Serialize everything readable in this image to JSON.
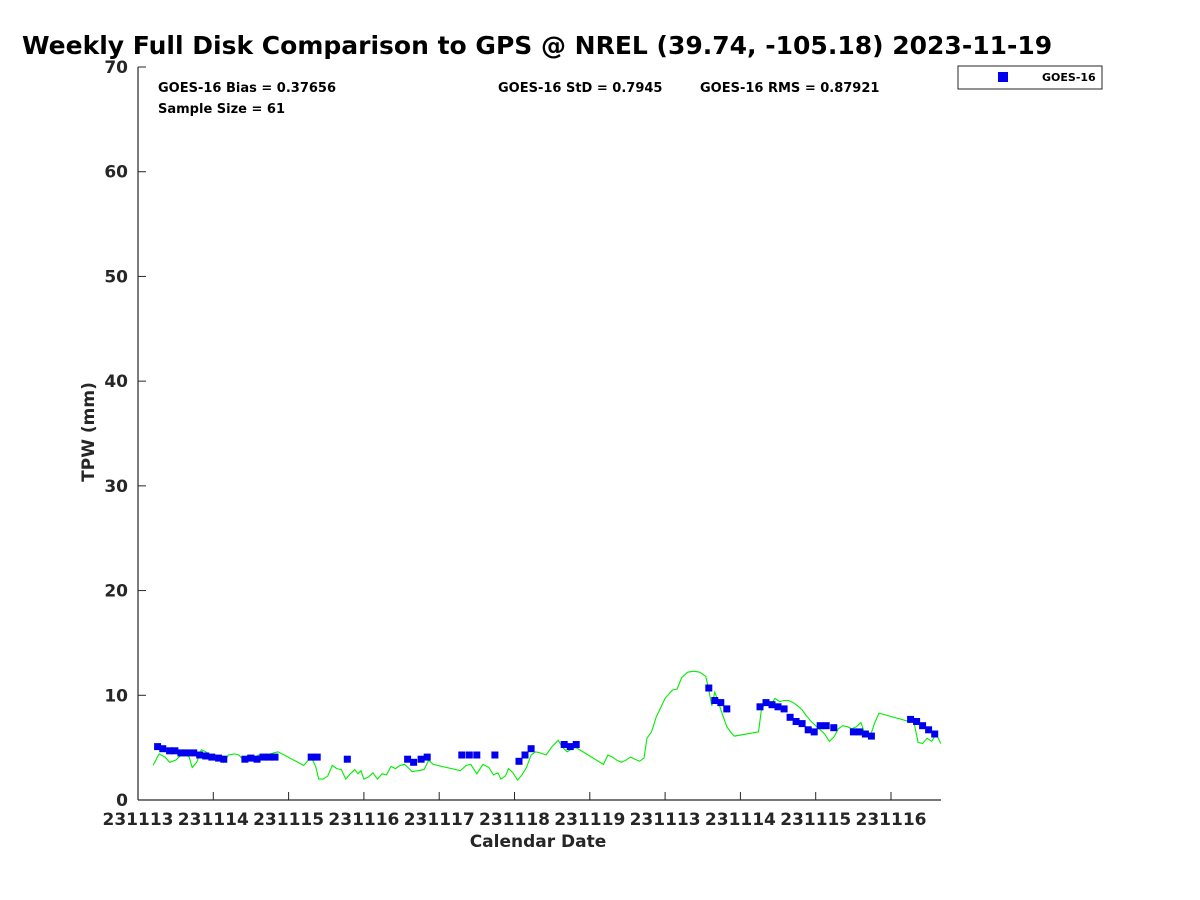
{
  "chart_data": {
    "type": "scatter",
    "title": "Weekly Full Disk Comparison to GPS @ NREL (39.74, -105.18) 2023-11-19",
    "xlabel": "Calendar Date",
    "ylabel": "TPW (mm)",
    "ylim": [
      0,
      70
    ],
    "yticks": [
      0,
      10,
      20,
      30,
      40,
      50,
      60,
      70
    ],
    "x_range": [
      0,
      10.65
    ],
    "xtick_positions": [
      0,
      1,
      2,
      3,
      4,
      5,
      6,
      7,
      8,
      9,
      10
    ],
    "xtick_labels": [
      "231113",
      "231114",
      "231115",
      "231116",
      "231117",
      "231118",
      "231119",
      "231113",
      "231114",
      "231115",
      "231116"
    ],
    "grid": false,
    "legend": {
      "placement": "top-right",
      "entries": [
        "GOES-16"
      ]
    },
    "stats": {
      "bias": "GOES-16 Bias = 0.37656",
      "std": "GOES-16 StD = 0.7945",
      "rms": "GOES-16 RMS = 0.87921",
      "sample": "Sample Size = 61"
    },
    "series": [
      {
        "name": "GOES-16",
        "marker": "square",
        "color": "#0000ee",
        "points": [
          [
            0.26,
            5.1
          ],
          [
            0.33,
            4.9
          ],
          [
            0.42,
            4.7
          ],
          [
            0.49,
            4.7
          ],
          [
            0.57,
            4.5
          ],
          [
            0.65,
            4.5
          ],
          [
            0.74,
            4.5
          ],
          [
            0.82,
            4.3
          ],
          [
            0.9,
            4.2
          ],
          [
            0.98,
            4.1
          ],
          [
            1.07,
            4.0
          ],
          [
            1.14,
            3.9
          ],
          [
            1.42,
            3.9
          ],
          [
            1.5,
            4.0
          ],
          [
            1.58,
            3.9
          ],
          [
            1.66,
            4.1
          ],
          [
            1.74,
            4.1
          ],
          [
            1.82,
            4.1
          ],
          [
            2.3,
            4.1
          ],
          [
            2.38,
            4.1
          ],
          [
            2.78,
            3.9
          ],
          [
            3.58,
            3.9
          ],
          [
            3.66,
            3.6
          ],
          [
            3.76,
            3.9
          ],
          [
            3.84,
            4.1
          ],
          [
            4.3,
            4.3
          ],
          [
            4.4,
            4.3
          ],
          [
            4.5,
            4.3
          ],
          [
            4.74,
            4.3
          ],
          [
            5.06,
            3.7
          ],
          [
            5.14,
            4.3
          ],
          [
            5.22,
            4.9
          ],
          [
            5.66,
            5.3
          ],
          [
            5.74,
            5.1
          ],
          [
            5.82,
            5.3
          ],
          [
            7.58,
            10.7
          ],
          [
            7.66,
            9.5
          ],
          [
            7.74,
            9.3
          ],
          [
            7.82,
            8.7
          ],
          [
            8.26,
            8.9
          ],
          [
            8.34,
            9.3
          ],
          [
            8.42,
            9.1
          ],
          [
            8.5,
            8.9
          ],
          [
            8.58,
            8.7
          ],
          [
            8.66,
            7.9
          ],
          [
            8.74,
            7.5
          ],
          [
            8.82,
            7.3
          ],
          [
            8.9,
            6.7
          ],
          [
            8.98,
            6.5
          ],
          [
            9.06,
            7.1
          ],
          [
            9.14,
            7.1
          ],
          [
            9.24,
            6.9
          ],
          [
            9.5,
            6.5
          ],
          [
            9.58,
            6.5
          ],
          [
            9.66,
            6.3
          ],
          [
            9.74,
            6.1
          ],
          [
            10.26,
            7.7
          ],
          [
            10.34,
            7.5
          ],
          [
            10.42,
            7.1
          ],
          [
            10.5,
            6.7
          ],
          [
            10.58,
            6.3
          ]
        ]
      },
      {
        "name": "GPS",
        "marker": "line",
        "color": "#00ee00",
        "points": [
          [
            0.2,
            3.3
          ],
          [
            0.28,
            4.4
          ],
          [
            0.36,
            4.1
          ],
          [
            0.42,
            3.6
          ],
          [
            0.5,
            3.8
          ],
          [
            0.56,
            4.2
          ],
          [
            0.62,
            4.4
          ],
          [
            0.68,
            4.1
          ],
          [
            0.72,
            3.1
          ],
          [
            0.78,
            3.6
          ],
          [
            0.84,
            4.8
          ],
          [
            0.9,
            4.6
          ],
          [
            0.96,
            4.3
          ],
          [
            1.04,
            4.0
          ],
          [
            1.1,
            4.2
          ],
          [
            1.14,
            3.6
          ],
          [
            1.2,
            4.3
          ],
          [
            1.28,
            4.4
          ],
          [
            1.34,
            4.3
          ],
          [
            1.4,
            3.8
          ],
          [
            1.46,
            4.3
          ],
          [
            1.52,
            3.9
          ],
          [
            1.6,
            4.3
          ],
          [
            1.66,
            4.1
          ],
          [
            1.72,
            4.3
          ],
          [
            1.8,
            4.5
          ],
          [
            1.86,
            4.6
          ],
          [
            2.2,
            3.3
          ],
          [
            2.3,
            4.1
          ],
          [
            2.36,
            3.2
          ],
          [
            2.4,
            2.0
          ],
          [
            2.46,
            2.0
          ],
          [
            2.52,
            2.3
          ],
          [
            2.58,
            3.3
          ],
          [
            2.64,
            3.0
          ],
          [
            2.7,
            2.9
          ],
          [
            2.76,
            2.0
          ],
          [
            2.82,
            2.5
          ],
          [
            2.88,
            2.9
          ],
          [
            2.92,
            2.5
          ],
          [
            2.96,
            2.8
          ],
          [
            3.0,
            2.0
          ],
          [
            3.06,
            2.2
          ],
          [
            3.12,
            2.6
          ],
          [
            3.18,
            2.0
          ],
          [
            3.24,
            2.5
          ],
          [
            3.3,
            2.4
          ],
          [
            3.36,
            3.2
          ],
          [
            3.42,
            3.0
          ],
          [
            3.48,
            3.3
          ],
          [
            3.54,
            3.4
          ],
          [
            3.6,
            3.0
          ],
          [
            3.64,
            2.7
          ],
          [
            3.72,
            2.8
          ],
          [
            3.8,
            2.9
          ],
          [
            3.86,
            3.8
          ],
          [
            3.92,
            3.4
          ],
          [
            4.28,
            2.8
          ],
          [
            4.36,
            3.3
          ],
          [
            4.42,
            3.4
          ],
          [
            4.5,
            2.5
          ],
          [
            4.58,
            3.4
          ],
          [
            4.66,
            3.1
          ],
          [
            4.72,
            2.4
          ],
          [
            4.78,
            2.6
          ],
          [
            4.82,
            2.0
          ],
          [
            4.88,
            2.3
          ],
          [
            4.92,
            3.0
          ],
          [
            4.98,
            2.6
          ],
          [
            5.04,
            1.9
          ],
          [
            5.1,
            2.4
          ],
          [
            5.16,
            3.1
          ],
          [
            5.22,
            4.3
          ],
          [
            5.28,
            4.6
          ],
          [
            5.34,
            4.5
          ],
          [
            5.42,
            4.3
          ],
          [
            5.5,
            5.1
          ],
          [
            5.58,
            5.7
          ],
          [
            5.64,
            5.0
          ],
          [
            5.7,
            4.6
          ],
          [
            5.76,
            4.9
          ],
          [
            5.82,
            5.0
          ],
          [
            6.18,
            3.4
          ],
          [
            6.24,
            4.3
          ],
          [
            6.3,
            4.1
          ],
          [
            6.36,
            3.8
          ],
          [
            6.42,
            3.6
          ],
          [
            6.48,
            3.8
          ],
          [
            6.54,
            4.1
          ],
          [
            6.6,
            3.9
          ],
          [
            6.66,
            3.7
          ],
          [
            6.72,
            4.0
          ],
          [
            6.76,
            5.9
          ],
          [
            6.82,
            6.5
          ],
          [
            6.88,
            7.9
          ],
          [
            6.94,
            8.8
          ],
          [
            7.0,
            9.7
          ],
          [
            7.06,
            10.2
          ],
          [
            7.1,
            10.5
          ],
          [
            7.16,
            10.6
          ],
          [
            7.22,
            11.7
          ],
          [
            7.3,
            12.2
          ],
          [
            7.38,
            12.3
          ],
          [
            7.46,
            12.2
          ],
          [
            7.54,
            11.8
          ],
          [
            7.58,
            10.5
          ],
          [
            7.62,
            9.0
          ],
          [
            7.66,
            10.3
          ],
          [
            7.7,
            9.5
          ],
          [
            7.76,
            8.2
          ],
          [
            7.82,
            7.0
          ],
          [
            7.88,
            6.4
          ],
          [
            7.92,
            6.1
          ],
          [
            8.24,
            6.5
          ],
          [
            8.28,
            8.7
          ],
          [
            8.34,
            9.3
          ],
          [
            8.4,
            9.1
          ],
          [
            8.46,
            9.7
          ],
          [
            8.52,
            9.4
          ],
          [
            8.58,
            9.5
          ],
          [
            8.64,
            9.5
          ],
          [
            8.7,
            9.3
          ],
          [
            8.76,
            9.0
          ],
          [
            8.82,
            8.6
          ],
          [
            8.88,
            8.0
          ],
          [
            8.94,
            7.5
          ],
          [
            9.0,
            7.1
          ],
          [
            9.06,
            6.7
          ],
          [
            9.12,
            6.3
          ],
          [
            9.18,
            5.6
          ],
          [
            9.24,
            6.0
          ],
          [
            9.3,
            6.8
          ],
          [
            9.36,
            7.1
          ],
          [
            9.42,
            7.0
          ],
          [
            9.48,
            6.8
          ],
          [
            9.54,
            7.0
          ],
          [
            9.6,
            7.4
          ],
          [
            9.66,
            6.2
          ],
          [
            9.72,
            6.0
          ],
          [
            9.78,
            7.3
          ],
          [
            9.84,
            8.3
          ],
          [
            10.24,
            7.5
          ],
          [
            10.3,
            7.6
          ],
          [
            10.36,
            5.5
          ],
          [
            10.42,
            5.4
          ],
          [
            10.48,
            5.9
          ],
          [
            10.54,
            5.6
          ],
          [
            10.6,
            6.3
          ],
          [
            10.66,
            5.4
          ]
        ]
      }
    ]
  }
}
